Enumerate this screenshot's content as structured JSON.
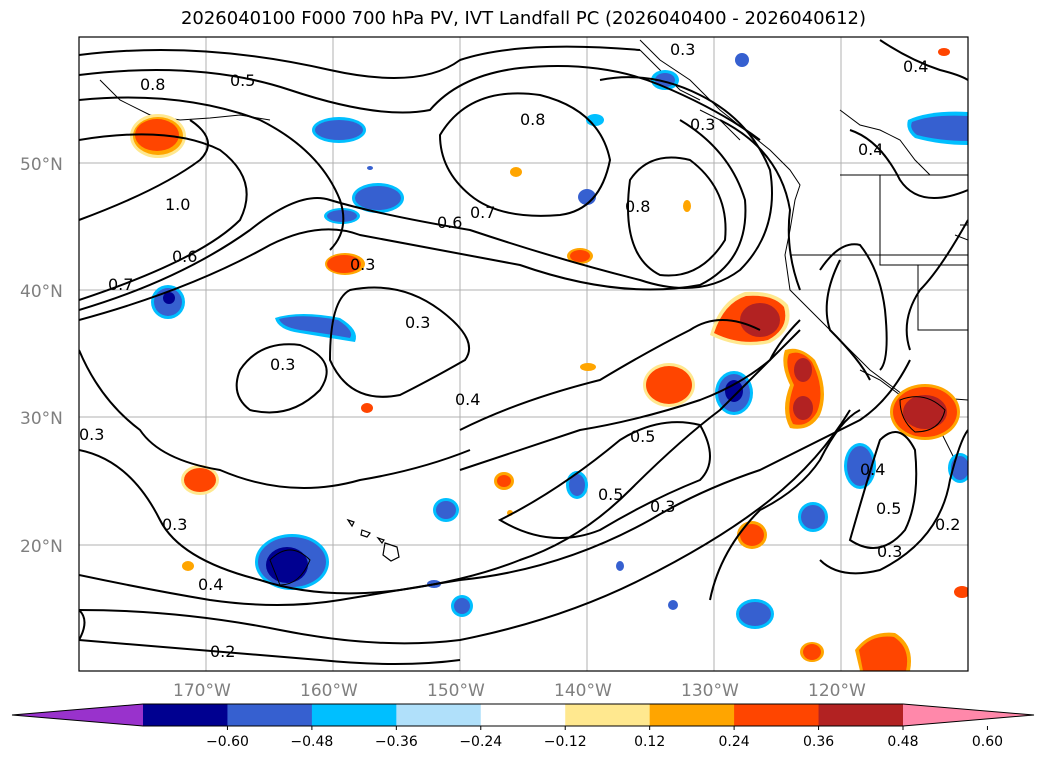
{
  "title": "2026040100 F000 700 hPa PV, IVT Landfall PC (2026040400 - 2026040612)",
  "gridlines": {
    "lat_labels": [
      "50°N",
      "40°N",
      "30°N",
      "20°N"
    ],
    "lon_labels": [
      "170°W",
      "160°W",
      "150°W",
      "140°W",
      "130°W",
      "120°W"
    ]
  },
  "contour_labels": [
    "0.8",
    "0.5",
    "1.0",
    "0.6",
    "0.7",
    "0.3",
    "0.3",
    "0.3",
    "0.4",
    "0.5",
    "0.5",
    "0.3",
    "0.3",
    "0.4",
    "0.2",
    "0.8",
    "0.7",
    "0.6",
    "0.8",
    "0.3",
    "0.4",
    "0.3",
    "0.4",
    "0.4",
    "0.5",
    "0.2",
    "0.3",
    "0.3"
  ],
  "colorbar": {
    "ticks": [
      "−0.60",
      "−0.48",
      "−0.36",
      "−0.24",
      "−0.12",
      "0.12",
      "0.24",
      "0.36",
      "0.48",
      "0.60"
    ],
    "colors": [
      "#9932cc",
      "#000090",
      "#3660d0",
      "#00bfff",
      "#b0e0fa",
      "#ffffff",
      "#ffe88f",
      "#ffa500",
      "#ff4500",
      "#b22222",
      "#ff88aa"
    ]
  },
  "fill_colors": {
    "red": "#ff4500",
    "darkred": "#b22222",
    "orange": "#ffa500",
    "yellow": "#ffe88f",
    "blue": "#3660d0",
    "navy": "#000090",
    "cyan": "#00bfff"
  }
}
